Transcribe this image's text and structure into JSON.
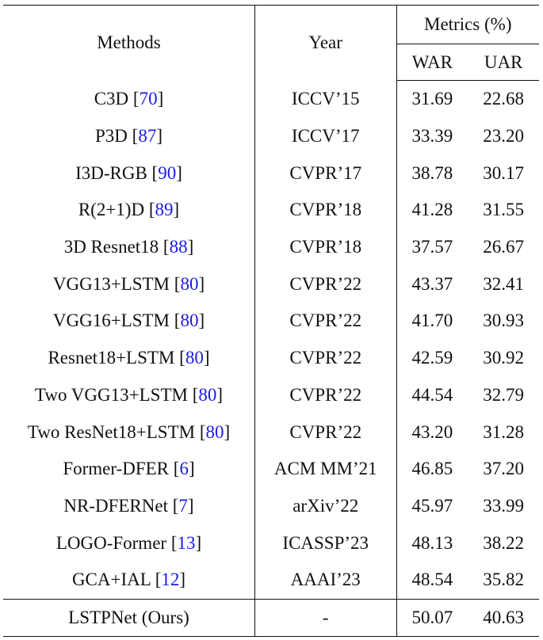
{
  "headers": {
    "methods": "Methods",
    "year": "Year",
    "metrics": "Metrics (%)",
    "war": "WAR",
    "uar": "UAR"
  },
  "rows": [
    {
      "method": "C3D",
      "ref": "70",
      "year": "ICCV’15",
      "war": "31.69",
      "uar": "22.68"
    },
    {
      "method": "P3D",
      "ref": "87",
      "year": "ICCV’17",
      "war": "33.39",
      "uar": "23.20"
    },
    {
      "method": "I3D-RGB",
      "ref": "90",
      "year": "CVPR’17",
      "war": "38.78",
      "uar": "30.17"
    },
    {
      "method": "R(2+1)D",
      "ref": "89",
      "year": "CVPR’18",
      "war": "41.28",
      "uar": "31.55"
    },
    {
      "method": "3D Resnet18",
      "ref": "88",
      "year": "CVPR’18",
      "war": "37.57",
      "uar": "26.67"
    },
    {
      "method": "VGG13+LSTM",
      "ref": "80",
      "year": "CVPR’22",
      "war": "43.37",
      "uar": "32.41"
    },
    {
      "method": "VGG16+LSTM",
      "ref": "80",
      "year": "CVPR’22",
      "war": "41.70",
      "uar": "30.93"
    },
    {
      "method": "Resnet18+LSTM",
      "ref": "80",
      "year": "CVPR’22",
      "war": "42.59",
      "uar": "30.92"
    },
    {
      "method": "Two VGG13+LSTM",
      "ref": "80",
      "year": "CVPR’22",
      "war": "44.54",
      "uar": "32.79"
    },
    {
      "method": "Two ResNet18+LSTM",
      "ref": "80",
      "year": "CVPR’22",
      "war": "43.20",
      "uar": "31.28"
    },
    {
      "method": "Former-DFER",
      "ref": "6",
      "year": "ACM MM’21",
      "war": "46.85",
      "uar": "37.20"
    },
    {
      "method": "NR-DFERNet",
      "ref": "7",
      "year": "arXiv’22",
      "war": "45.97",
      "uar": "33.99"
    },
    {
      "method": "LOGO-Former",
      "ref": "13",
      "year": "ICASSP’23",
      "war": "48.13",
      "uar": "38.22"
    },
    {
      "method": "GCA+IAL",
      "ref": "12",
      "year": "AAAI’23",
      "war": "48.54",
      "uar": "35.82"
    }
  ],
  "ours": {
    "method": "LSTPNet (Ours)",
    "year": "-",
    "war": "50.07",
    "uar": "40.63"
  },
  "colors": {
    "reference_link": "#1a1ae6",
    "text": "#111111"
  }
}
